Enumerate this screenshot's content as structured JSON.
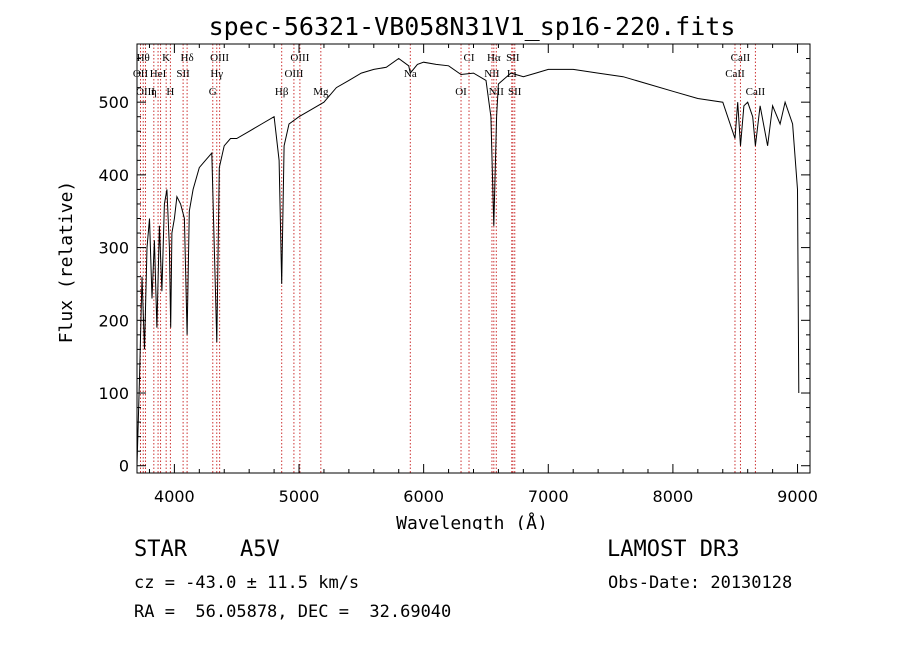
{
  "chart_data": {
    "type": "line",
    "title": "spec-56321-VB058N31V1_sp16-220.fits",
    "xlabel": "Wavelength (Å)",
    "ylabel": "Flux (relative)",
    "xlim": [
      3700,
      9100
    ],
    "ylim": [
      -10,
      580
    ],
    "xticks": [
      4000,
      5000,
      6000,
      7000,
      8000,
      9000
    ],
    "xtick_labels": [
      "4000",
      "5000",
      "6000",
      "7000",
      "8000",
      "9000"
    ],
    "yticks": [
      0,
      100,
      200,
      300,
      400,
      500
    ],
    "ytick_labels": [
      "0",
      "100",
      "200",
      "300",
      "400",
      "500"
    ],
    "grid": false,
    "series": [
      {
        "name": "flux",
        "x": [
          3700,
          3720,
          3740,
          3760,
          3780,
          3800,
          3820,
          3840,
          3860,
          3880,
          3900,
          3920,
          3940,
          3960,
          3970,
          3980,
          4000,
          4020,
          4050,
          4080,
          4102,
          4120,
          4150,
          4200,
          4250,
          4300,
          4340,
          4360,
          4400,
          4450,
          4500,
          4600,
          4700,
          4800,
          4840,
          4861,
          4880,
          4920,
          5000,
          5100,
          5200,
          5300,
          5400,
          5500,
          5600,
          5700,
          5800,
          5880,
          5893,
          5950,
          6000,
          6100,
          6200,
          6300,
          6400,
          6500,
          6540,
          6563,
          6585,
          6600,
          6700,
          6800,
          6900,
          7000,
          7100,
          7200,
          7400,
          7600,
          7800,
          8000,
          8200,
          8400,
          8498,
          8520,
          8542,
          8570,
          8600,
          8640,
          8662,
          8700,
          8760,
          8800,
          8860,
          8900,
          8960,
          9000,
          9010
        ],
        "y": [
          0,
          120,
          260,
          160,
          300,
          340,
          230,
          310,
          190,
          330,
          240,
          360,
          380,
          300,
          190,
          320,
          340,
          370,
          360,
          340,
          180,
          350,
          380,
          410,
          420,
          430,
          170,
          410,
          440,
          450,
          450,
          460,
          470,
          480,
          420,
          250,
          440,
          470,
          480,
          490,
          500,
          520,
          530,
          540,
          545,
          548,
          560,
          550,
          540,
          552,
          555,
          552,
          550,
          538,
          540,
          530,
          480,
          330,
          480,
          525,
          540,
          535,
          540,
          545,
          545,
          545,
          540,
          535,
          525,
          515,
          505,
          500,
          450,
          500,
          440,
          495,
          500,
          480,
          440,
          495,
          440,
          495,
          470,
          500,
          470,
          380,
          100
        ]
      }
    ],
    "lines": [
      {
        "x": 3750,
        "label": "Hθ",
        "row": 1
      },
      {
        "x": 3728,
        "label": "OII",
        "row": 2
      },
      {
        "x": 3768,
        "label": "OIII",
        "row": 3
      },
      {
        "x": 3835,
        "label": "η",
        "row": 3
      },
      {
        "x": 3869,
        "label": "HeI",
        "row": 2
      },
      {
        "x": 3889,
        "label": "",
        "row": 0
      },
      {
        "x": 3934,
        "label": "K",
        "row": 1
      },
      {
        "x": 3968,
        "label": "H",
        "row": 3
      },
      {
        "x": 4070,
        "label": "SII",
        "row": 2
      },
      {
        "x": 4102,
        "label": "Hδ",
        "row": 1
      },
      {
        "x": 4308,
        "label": "G",
        "row": 3
      },
      {
        "x": 4340,
        "label": "Hγ",
        "row": 2
      },
      {
        "x": 4363,
        "label": "OIII",
        "row": 1
      },
      {
        "x": 4861,
        "label": "Hβ",
        "row": 3
      },
      {
        "x": 4959,
        "label": "OIII",
        "row": 2
      },
      {
        "x": 5007,
        "label": "OIII",
        "row": 1
      },
      {
        "x": 5175,
        "label": "Mg",
        "row": 3
      },
      {
        "x": 5893,
        "label": "Na",
        "row": 2
      },
      {
        "x": 6300,
        "label": "OI",
        "row": 3
      },
      {
        "x": 6364,
        "label": "CI",
        "row": 1
      },
      {
        "x": 6548,
        "label": "NII",
        "row": 2
      },
      {
        "x": 6563,
        "label": "Hα",
        "row": 1
      },
      {
        "x": 6583,
        "label": "NII",
        "row": 3
      },
      {
        "x": 6707,
        "label": "Li",
        "row": 2
      },
      {
        "x": 6716,
        "label": "SII",
        "row": 1
      },
      {
        "x": 6731,
        "label": "SII",
        "row": 3
      },
      {
        "x": 8498,
        "label": "CaII",
        "row": 2
      },
      {
        "x": 8542,
        "label": "CaII",
        "row": 1
      },
      {
        "x": 8662,
        "label": "CaII",
        "row": 3
      }
    ]
  },
  "info": {
    "object_class": "STAR",
    "subclass": "A5V",
    "survey": "LAMOST DR3",
    "redshift_line": "cz = -43.0 ± 11.5 km/s",
    "obs_date": "Obs-Date: 20130128",
    "radec": "RA =  56.05878, DEC =  32.69040"
  },
  "colors": {
    "spectrum": "#000000",
    "line_markers": "#cc3333",
    "axes": "#000000"
  }
}
